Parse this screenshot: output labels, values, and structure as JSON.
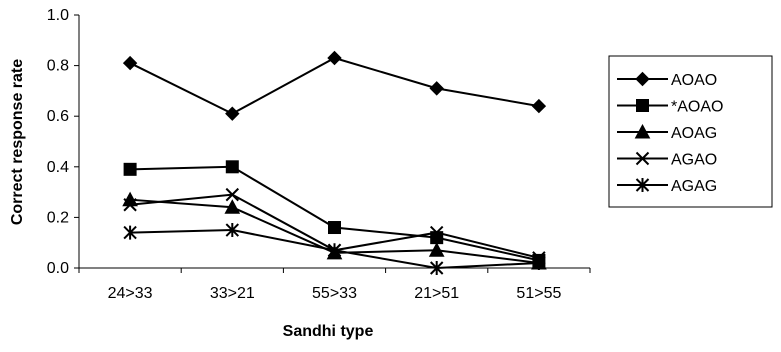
{
  "chart_data": {
    "type": "line",
    "title": "",
    "xlabel": "Sandhi type",
    "ylabel": "Correct response rate",
    "categories": [
      "24>33",
      "33>21",
      "55>33",
      "21>51",
      "51>55"
    ],
    "ylim": [
      0,
      1
    ],
    "yticks": [
      "0.0",
      "0.2",
      "0.4",
      "0.6",
      "0.8",
      "1.0"
    ],
    "ytick_values": [
      0,
      0.2,
      0.4,
      0.6,
      0.8,
      1.0
    ],
    "grid": false,
    "legend_position": "right",
    "series": [
      {
        "name": "AOAO",
        "marker": "diamond",
        "values": [
          0.81,
          0.61,
          0.83,
          0.71,
          0.64
        ]
      },
      {
        "name": "*AOAO",
        "marker": "square",
        "values": [
          0.39,
          0.4,
          0.16,
          0.12,
          0.03
        ]
      },
      {
        "name": "AOAG",
        "marker": "triangle",
        "values": [
          0.27,
          0.24,
          0.06,
          0.07,
          0.02
        ]
      },
      {
        "name": "AGAO",
        "marker": "x",
        "values": [
          0.25,
          0.29,
          0.07,
          0.14,
          0.04
        ]
      },
      {
        "name": "AGAG",
        "marker": "star",
        "values": [
          0.14,
          0.15,
          0.07,
          0.0,
          0.02
        ]
      }
    ],
    "colors": {
      "line": "#000000",
      "background": "#ffffff"
    }
  }
}
